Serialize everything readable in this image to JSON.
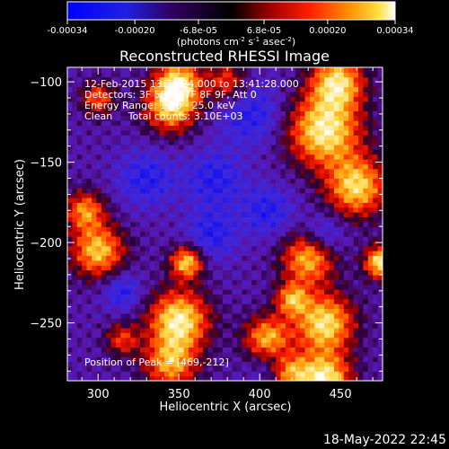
{
  "colorbar": {
    "ticks": [
      "-0.00034",
      "-0.00020",
      "-6.8e-05",
      "6.8e-05",
      "0.00020",
      "0.00034"
    ],
    "tick_values": [
      -0.00034,
      -0.0002,
      -6.8e-05,
      6.8e-05,
      0.0002,
      0.00034
    ],
    "range": [
      -0.00034,
      0.00034
    ],
    "units_main": "(photons cm",
    "units_sup1": "-2",
    "units_mid": " s",
    "units_sup2": "-1",
    "units_tail": " asec",
    "units_sup3": "-2",
    "units_close": ")"
  },
  "title": "Reconstructed RHESSI Image",
  "annotations": {
    "time": "12-Feb-2015 13:38:24.000 to 13:41:28.000",
    "detectors": "Detectors: 3F 5F 6F 7F 8F 9F, Att 0",
    "energy": "Energy Range: 12.0 - 25.0 keV",
    "clean": "Clean     Total counts: 3.10E+03",
    "peak": "Position of Peak = [469,-212]"
  },
  "xlabel": "Heliocentric X (arcsec)",
  "ylabel": "Heliocentric Y (arcsec)",
  "timestamp": "18-May-2022 22:45",
  "chart_data": {
    "type": "heatmap",
    "title": "Reconstructed RHESSI Image",
    "xlabel": "Heliocentric X (arcsec)",
    "ylabel": "Heliocentric Y (arcsec)",
    "xlim": [
      281,
      476
    ],
    "ylim": [
      -286,
      -91
    ],
    "x_ticks": [
      300,
      350,
      400,
      450
    ],
    "x_tick_labels": [
      "300",
      "350",
      "400",
      "450"
    ],
    "y_ticks": [
      -100,
      -150,
      -200,
      -250
    ],
    "y_tick_labels": [
      "−100",
      "−150",
      "−200",
      "−250"
    ],
    "peak_position": [
      469,
      -212
    ],
    "colorscale_range": [
      -0.00034,
      0.00034
    ],
    "grid": false,
    "colors": {
      "negative": "#1010ff",
      "zero": "#000000",
      "mid": "#c01800",
      "high": "#ff9000",
      "max": "#ffffff"
    }
  }
}
